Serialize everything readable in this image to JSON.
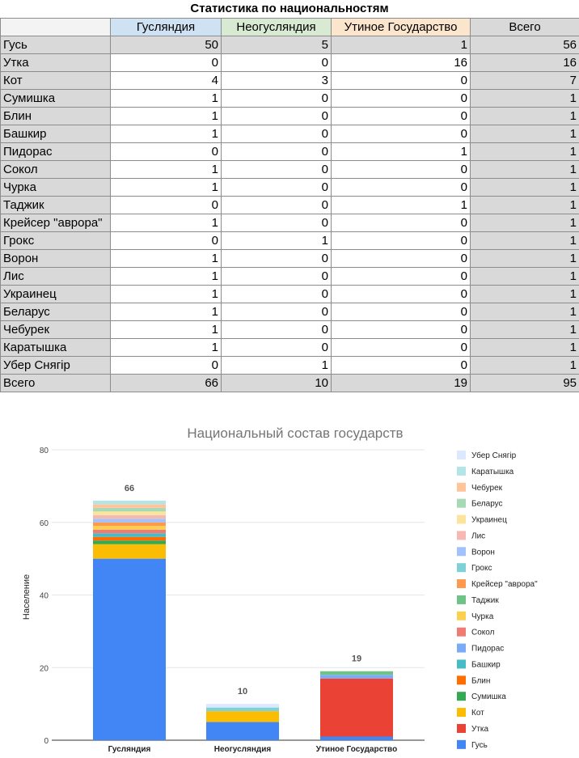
{
  "table": {
    "title": "Статистика по национальностям",
    "columns": [
      {
        "label": "Гусляндия",
        "bg": "#cfe2f3"
      },
      {
        "label": "Неогусляндия",
        "bg": "#d9ead3"
      },
      {
        "label": "Утиное Государство",
        "bg": "#fce5cd"
      },
      {
        "label": "Всего",
        "bg": "#d9d9d9"
      }
    ],
    "rows": [
      {
        "name": "Гусь",
        "values": [
          50,
          5,
          1,
          56
        ]
      },
      {
        "name": "Утка",
        "values": [
          0,
          0,
          16,
          16
        ]
      },
      {
        "name": "Кот",
        "values": [
          4,
          3,
          0,
          7
        ]
      },
      {
        "name": "Сумишка",
        "values": [
          1,
          0,
          0,
          1
        ]
      },
      {
        "name": "Блин",
        "values": [
          1,
          0,
          0,
          1
        ]
      },
      {
        "name": "Башкир",
        "values": [
          1,
          0,
          0,
          1
        ]
      },
      {
        "name": "Пидорас",
        "values": [
          0,
          0,
          1,
          1
        ]
      },
      {
        "name": "Сокол",
        "values": [
          1,
          0,
          0,
          1
        ]
      },
      {
        "name": "Чурка",
        "values": [
          1,
          0,
          0,
          1
        ]
      },
      {
        "name": "Таджик",
        "values": [
          0,
          0,
          1,
          1
        ]
      },
      {
        "name": "Крейсер \"аврора\"",
        "values": [
          1,
          0,
          0,
          1
        ]
      },
      {
        "name": "Грокс",
        "values": [
          0,
          1,
          0,
          1
        ]
      },
      {
        "name": "Ворон",
        "values": [
          1,
          0,
          0,
          1
        ]
      },
      {
        "name": "Лис",
        "values": [
          1,
          0,
          0,
          1
        ]
      },
      {
        "name": "Украинец",
        "values": [
          1,
          0,
          0,
          1
        ]
      },
      {
        "name": "Беларус",
        "values": [
          1,
          0,
          0,
          1
        ]
      },
      {
        "name": "Чебурек",
        "values": [
          1,
          0,
          0,
          1
        ]
      },
      {
        "name": "Каратышка",
        "values": [
          1,
          0,
          0,
          1
        ]
      },
      {
        "name": "Убер Снягір",
        "values": [
          0,
          1,
          0,
          1
        ]
      }
    ],
    "total": {
      "name": "Всего",
      "values": [
        66,
        10,
        19,
        95
      ]
    }
  },
  "chart_data": {
    "type": "bar",
    "stacked": true,
    "title": "Национальный состав государств",
    "ylabel": "Население",
    "xlabel": "",
    "ylim": [
      0,
      80
    ],
    "yticks": [
      0,
      20,
      40,
      60,
      80
    ],
    "grid": true,
    "legend_position": "right",
    "categories": [
      "Гусляндия",
      "Неогусляндия",
      "Утиное Государство"
    ],
    "totals": [
      66,
      10,
      19
    ],
    "series": [
      {
        "name": "Гусь",
        "color": "#4285f4",
        "values": [
          50,
          5,
          1
        ]
      },
      {
        "name": "Утка",
        "color": "#ea4335",
        "values": [
          0,
          0,
          16
        ]
      },
      {
        "name": "Кот",
        "color": "#fbbc04",
        "values": [
          4,
          3,
          0
        ]
      },
      {
        "name": "Сумишка",
        "color": "#34a853",
        "values": [
          1,
          0,
          0
        ]
      },
      {
        "name": "Блин",
        "color": "#ff6d01",
        "values": [
          1,
          0,
          0
        ]
      },
      {
        "name": "Башкир",
        "color": "#46bdc6",
        "values": [
          1,
          0,
          0
        ]
      },
      {
        "name": "Пидорас",
        "color": "#7baaf7",
        "values": [
          0,
          0,
          1
        ]
      },
      {
        "name": "Сокол",
        "color": "#f07b72",
        "values": [
          1,
          0,
          0
        ]
      },
      {
        "name": "Чурка",
        "color": "#fcd04f",
        "values": [
          1,
          0,
          0
        ]
      },
      {
        "name": "Таджик",
        "color": "#71c287",
        "values": [
          0,
          0,
          1
        ]
      },
      {
        "name": "Крейсер \"аврора\"",
        "color": "#ff994d",
        "values": [
          1,
          0,
          0
        ]
      },
      {
        "name": "Грокс",
        "color": "#7ed1d7",
        "values": [
          0,
          1,
          0
        ]
      },
      {
        "name": "Ворон",
        "color": "#a1c2fa",
        "values": [
          1,
          0,
          0
        ]
      },
      {
        "name": "Лис",
        "color": "#f5b8b3",
        "values": [
          1,
          0,
          0
        ]
      },
      {
        "name": "Украинец",
        "color": "#fde49c",
        "values": [
          1,
          0,
          0
        ]
      },
      {
        "name": "Беларус",
        "color": "#a8d9b5",
        "values": [
          1,
          0,
          0
        ]
      },
      {
        "name": "Чебурек",
        "color": "#ffc49a",
        "values": [
          1,
          0,
          0
        ]
      },
      {
        "name": "Каратышка",
        "color": "#b3e5e8",
        "values": [
          1,
          0,
          0
        ]
      },
      {
        "name": "Убер Снягір",
        "color": "#dbe8fd",
        "values": [
          0,
          1,
          0
        ]
      }
    ]
  }
}
